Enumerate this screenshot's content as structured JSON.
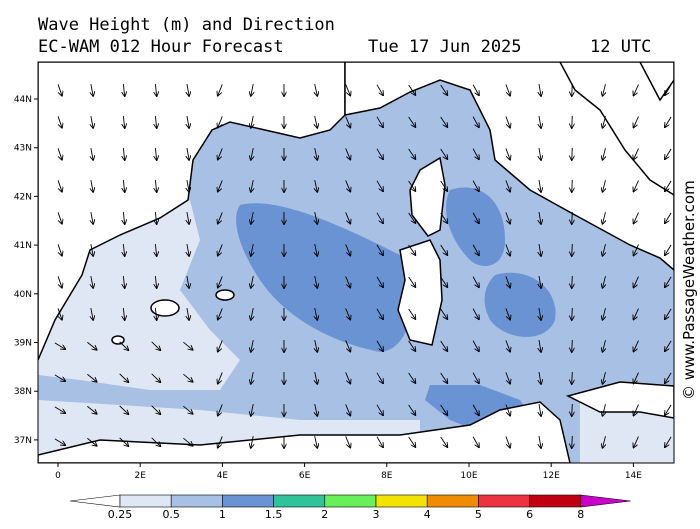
{
  "header": {
    "title": "Wave Height (m) and Direction",
    "subtitle": "EC-WAM 012 Hour Forecast",
    "date": "Tue 17 Jun 2025",
    "time": "12 UTC"
  },
  "axes": {
    "longitude_labels": [
      "0",
      "2E",
      "4E",
      "6E",
      "8E",
      "10E",
      "12E",
      "14E"
    ],
    "latitude_labels": [
      "44N",
      "43N",
      "42N",
      "41N",
      "40N",
      "39N",
      "38N",
      "37N"
    ]
  },
  "colorbar": {
    "labels": [
      "0.25",
      "0.5",
      "1",
      "1.5",
      "2",
      "3",
      "4",
      "5",
      "6",
      "8"
    ],
    "colors": [
      "#ffffff",
      "#dfe7f5",
      "#a7c0e3",
      "#6a93d3",
      "#2fc39a",
      "#66f05a",
      "#f2e400",
      "#f08c00",
      "#ee3340",
      "#c00010",
      "#c800c8"
    ]
  },
  "watermark": "© www.PassageWeather.com"
}
